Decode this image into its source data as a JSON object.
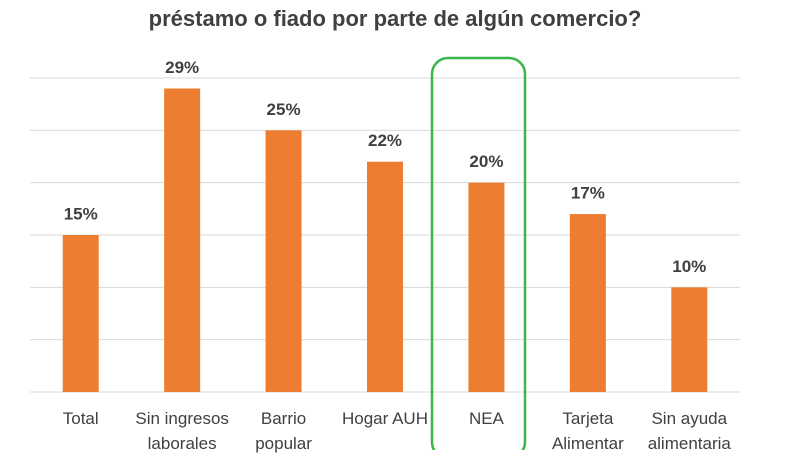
{
  "chart_data": {
    "type": "bar",
    "title": "préstamo o fiado por parte de algún comercio?",
    "categories": [
      "Total",
      "Sin ingresos laborales",
      "Barrio popular",
      "Hogar AUH",
      "NEA",
      "Tarjeta Alimentar",
      "Sin ayuda alimentaria"
    ],
    "values": [
      15,
      29,
      25,
      22,
      20,
      17,
      10
    ],
    "value_labels": [
      "15%",
      "29%",
      "25%",
      "22%",
      "20%",
      "17%",
      "10%"
    ],
    "color": "#ed7d31",
    "ylim": [
      0,
      30
    ],
    "yticks": [
      0,
      5,
      10,
      15,
      20,
      25,
      30
    ],
    "grid": true
  }
}
